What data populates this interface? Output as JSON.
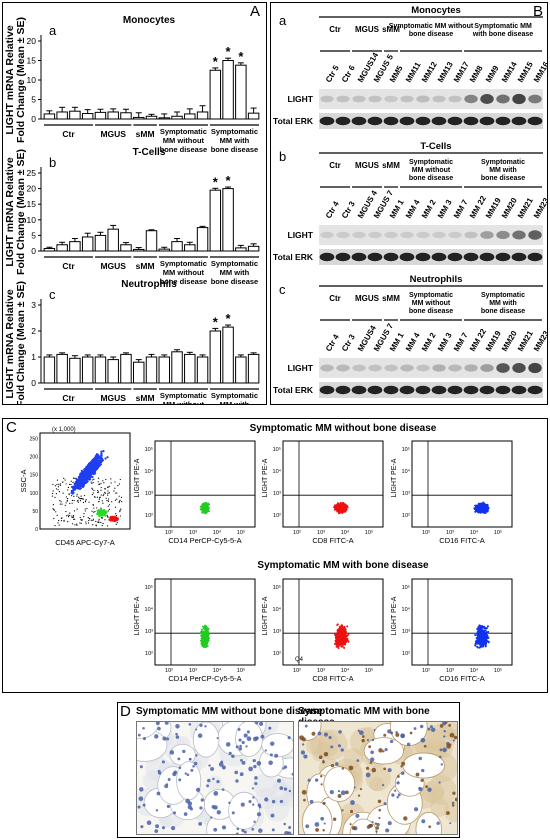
{
  "panelA": {
    "label": "A",
    "ylabel_line1": "LIGHT mRNA Relative",
    "ylabel_line2": "Fold  Change (Mean ± SE)",
    "groups": [
      "Ctr",
      "MGUS",
      "sMM",
      "Symptomatic MM without bone disease",
      "Symptomatic MM with bone disease"
    ],
    "group_lines": [
      [
        "Ctr"
      ],
      [
        "MGUS"
      ],
      [
        "sMM"
      ],
      [
        "Symptomatic",
        "MM without",
        "bone disease"
      ],
      [
        "Symptomatic",
        "MM with",
        "bone disease"
      ]
    ],
    "star": "*"
  },
  "chart_data": [
    {
      "type": "bar",
      "sub": "a",
      "title": "Monocytes",
      "ylim": [
        0,
        20
      ],
      "ticks": [
        0,
        5,
        10,
        15,
        20
      ],
      "values": [
        1.3,
        1.8,
        2.0,
        1.4,
        1.7,
        1.8,
        1.6,
        0.4,
        0.7,
        0.3,
        0.7,
        1.3,
        1.8,
        12.5,
        15.0,
        13.8,
        1.5
      ],
      "errors": [
        0.8,
        1.2,
        1.0,
        1.0,
        0.8,
        0.8,
        0.9,
        1.2,
        0.5,
        1.0,
        1.1,
        1.3,
        1.6,
        0.6,
        0.6,
        0.6,
        1.3
      ],
      "group_sizes": [
        4,
        3,
        2,
        4,
        4
      ],
      "stars": [
        13,
        14,
        15
      ]
    },
    {
      "type": "bar",
      "sub": "b",
      "title": "T-Cells",
      "ylim": [
        0,
        25
      ],
      "ticks": [
        0,
        5,
        10,
        15,
        20,
        25
      ],
      "values": [
        0.8,
        2.0,
        3.0,
        4.5,
        5.0,
        7.0,
        2.0,
        0.5,
        6.5,
        0.6,
        3.0,
        2.0,
        7.5,
        19.5,
        20.0,
        1.0,
        1.5
      ],
      "errors": [
        0.4,
        0.8,
        1.0,
        1.2,
        1.0,
        1.2,
        0.7,
        0.6,
        0.3,
        0.6,
        1.0,
        0.8,
        0.4,
        0.6,
        0.5,
        0.8,
        0.8
      ],
      "group_sizes": [
        4,
        3,
        2,
        4,
        4
      ],
      "stars": [
        13,
        14
      ]
    },
    {
      "type": "bar",
      "sub": "c",
      "title": "Neutrophils",
      "ylim": [
        0,
        3
      ],
      "ticks": [
        0,
        1,
        2,
        3
      ],
      "values": [
        1.0,
        1.1,
        0.95,
        1.0,
        1.0,
        0.9,
        1.1,
        0.8,
        1.0,
        1.0,
        1.2,
        1.1,
        1.0,
        2.0,
        2.15,
        1.0,
        1.1
      ],
      "errors": [
        0.08,
        0.06,
        0.1,
        0.08,
        0.08,
        0.1,
        0.06,
        0.1,
        0.1,
        0.08,
        0.08,
        0.08,
        0.08,
        0.1,
        0.08,
        0.08,
        0.06
      ],
      "group_sizes": [
        4,
        3,
        2,
        4,
        4
      ],
      "stars": [
        13,
        14
      ]
    }
  ],
  "panelB": {
    "label": "B",
    "blots": [
      {
        "sub": "a",
        "title": "Monocytes",
        "group_labels": [
          [
            "Ctr"
          ],
          [
            "MGUS"
          ],
          [
            "sMM"
          ],
          [
            "Symptomatic MM without",
            "bone disease"
          ],
          [
            "Symptomatic MM",
            "with bone disease"
          ]
        ],
        "lanes": [
          "Ctr 5",
          "Ctr 6",
          "MGUS14",
          "MGUS 5",
          "MM5",
          "MM11",
          "MM12",
          "MM13",
          "MM17",
          "MM8",
          "MM9",
          "MM14",
          "MM15",
          "MM16"
        ],
        "light": [
          0.15,
          0.15,
          0.15,
          0.15,
          0.12,
          0.15,
          0.18,
          0.15,
          0.15,
          0.5,
          0.8,
          0.6,
          0.85,
          0.55
        ],
        "row_labels": [
          "LIGHT",
          "Total ERK"
        ]
      },
      {
        "sub": "b",
        "title": "T-Cells",
        "group_labels": [
          [
            "Ctr"
          ],
          [
            "MGUS"
          ],
          [
            "sMM"
          ],
          [
            "Symptomatic",
            "MM without",
            "bone disease"
          ],
          [
            "Symptomatic",
            "MM with",
            "bone disease"
          ]
        ],
        "lanes": [
          "Ctr 4",
          "Ctr 3",
          "MGUS 4",
          "MGUS 7",
          "MM 1",
          "MM 4",
          "MM 2",
          "MM 3",
          "MM 7",
          "MM 22",
          "MM19",
          "MM20",
          "MM21",
          "MM23"
        ],
        "light": [
          0.1,
          0.1,
          0.1,
          0.1,
          0.1,
          0.1,
          0.1,
          0.1,
          0.1,
          0.15,
          0.35,
          0.45,
          0.6,
          0.7
        ],
        "row_labels": [
          "LIGHT",
          "Total ERK"
        ]
      },
      {
        "sub": "c",
        "title": "Neutrophils",
        "group_labels": [
          [
            "Ctr"
          ],
          [
            "MGUS"
          ],
          [
            "sMM"
          ],
          [
            "Symptomatic",
            "MM without",
            "bone disease"
          ],
          [
            "Symptomatic",
            "MM with",
            "bone disease"
          ]
        ],
        "lanes": [
          "Ctr 4",
          "Ctr 3",
          "MGUS4",
          "MGUS 7",
          "MM 1",
          "MM 4",
          "MM 2",
          "MM 3",
          "MM 7",
          "MM 22",
          "MM19",
          "MM20",
          "MM21",
          "MM23"
        ],
        "light": [
          0.2,
          0.2,
          0.15,
          0.15,
          0.15,
          0.2,
          0.15,
          0.25,
          0.2,
          0.25,
          0.35,
          0.75,
          0.8,
          0.85
        ],
        "row_labels": [
          "LIGHT",
          "Total ERK"
        ]
      }
    ]
  },
  "panelC": {
    "label": "C",
    "header_without": "Symptomatic MM without bone disease",
    "header_with": "Symptomatic MM with bone disease",
    "gating": {
      "ylabel": "SSC-A",
      "xlabel": "CD45 APC-Cy7-A",
      "scale": "(x 1,000)"
    },
    "ylabel_light": "LIGHT PE-A",
    "plots": [
      {
        "x_label": "CD14 PerCP-Cy5-5-A",
        "color": "#22cc22"
      },
      {
        "x_label": "CD8 FITC-A",
        "color": "#ee1111"
      },
      {
        "x_label": "CD16 FITC-A",
        "color": "#1133ee"
      }
    ],
    "quadrant_code": "Q4"
  },
  "panelD": {
    "label": "D",
    "left_title": "Symptomatic MM without bone disease",
    "right_title": "Symptomatic MM with bone disease"
  }
}
